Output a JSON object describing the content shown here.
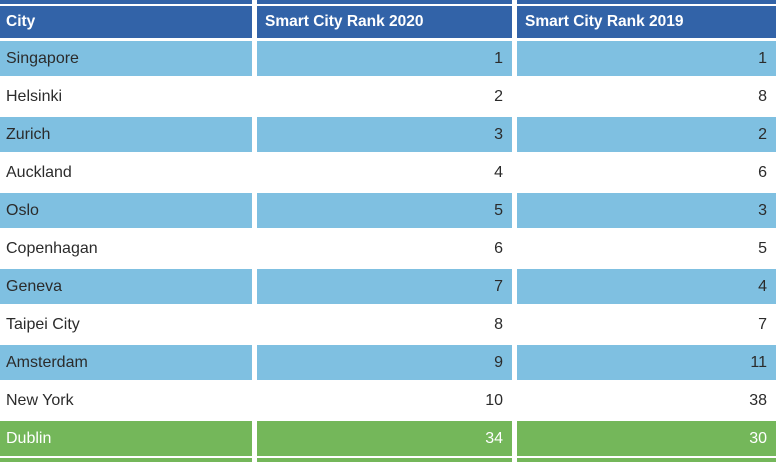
{
  "chart_data": {
    "type": "table",
    "columns": [
      "City",
      "Smart City Rank 2020",
      "Smart City Rank 2019"
    ],
    "rows": [
      [
        "Singapore",
        1,
        1
      ],
      [
        "Helsinki",
        2,
        8
      ],
      [
        "Zurich",
        3,
        2
      ],
      [
        "Auckland",
        4,
        6
      ],
      [
        "Oslo",
        5,
        3
      ],
      [
        "Copenhagan",
        6,
        5
      ],
      [
        "Geneva",
        7,
        4
      ],
      [
        "Taipei City",
        8,
        7
      ],
      [
        "Amsterdam",
        9,
        11
      ],
      [
        "New York",
        10,
        38
      ],
      [
        "Dublin",
        34,
        30
      ]
    ],
    "title": "",
    "layout_hints": "header row dark blue with white bold text; data rows alternate light blue and white; final row (Dublin) highlighted green with white text; rank columns right-aligned"
  },
  "table": {
    "header": {
      "city": "City",
      "rank2020": "Smart City Rank 2020",
      "rank2019": "Smart City Rank 2019"
    },
    "rows": [
      {
        "city": "Singapore",
        "rank2020": "1",
        "rank2019": "1"
      },
      {
        "city": "Helsinki",
        "rank2020": "2",
        "rank2019": "8"
      },
      {
        "city": "Zurich",
        "rank2020": "3",
        "rank2019": "2"
      },
      {
        "city": "Auckland",
        "rank2020": "4",
        "rank2019": "6"
      },
      {
        "city": "Oslo",
        "rank2020": "5",
        "rank2019": "3"
      },
      {
        "city": "Copenhagan",
        "rank2020": "6",
        "rank2019": "5"
      },
      {
        "city": "Geneva",
        "rank2020": "7",
        "rank2019": "4"
      },
      {
        "city": "Taipei City",
        "rank2020": "8",
        "rank2019": "7"
      },
      {
        "city": "Amsterdam",
        "rank2020": "9",
        "rank2019": "11"
      },
      {
        "city": "New York",
        "rank2020": "10",
        "rank2019": "38"
      },
      {
        "city": "Dublin",
        "rank2020": "34",
        "rank2019": "30"
      }
    ],
    "colors": {
      "header_bg": "#3263A8",
      "header_text": "#FFFFFF",
      "row_alt_bg": "#7FC0E1",
      "highlight_bg": "#74B75A",
      "highlight_text": "#FFFFFF",
      "body_text": "#2B2B2B"
    }
  }
}
